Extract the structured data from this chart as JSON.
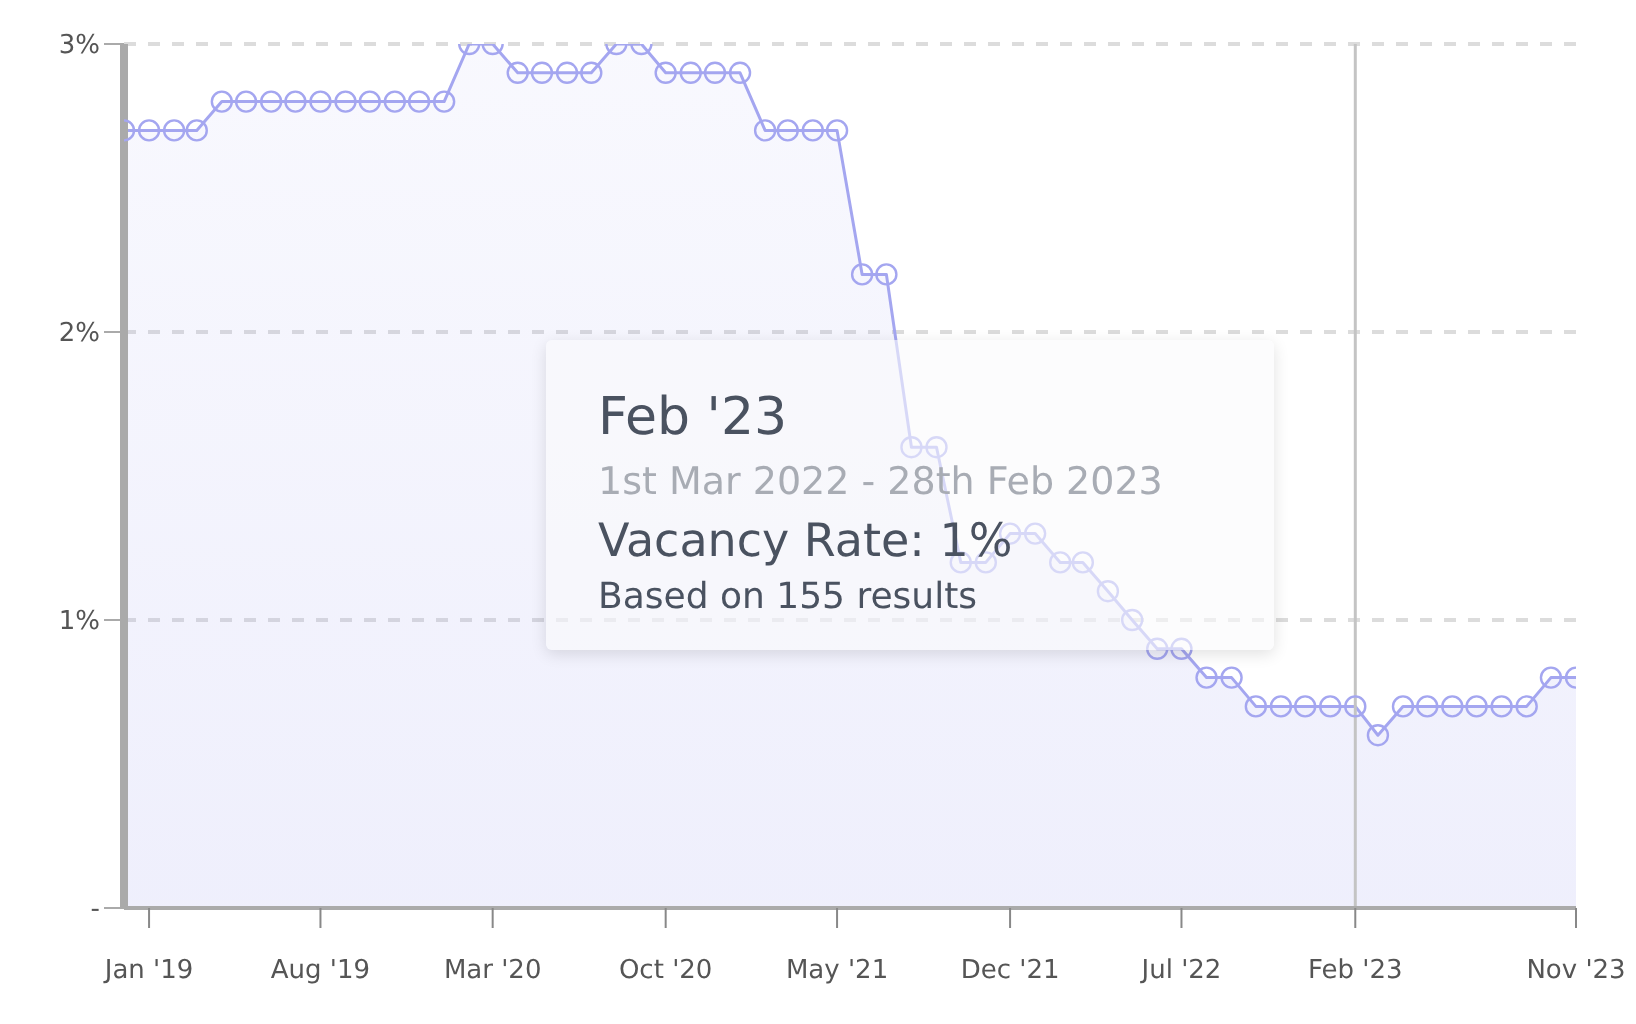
{
  "chart_data": {
    "type": "area",
    "x": [
      "2018-12",
      "2019-01",
      "2019-02",
      "2019-03",
      "2019-04",
      "2019-05",
      "2019-06",
      "2019-07",
      "2019-08",
      "2019-09",
      "2019-10",
      "2019-11",
      "2019-12",
      "2020-01",
      "2020-02",
      "2020-03",
      "2020-04",
      "2020-05",
      "2020-06",
      "2020-07",
      "2020-08",
      "2020-09",
      "2020-10",
      "2020-11",
      "2020-12",
      "2021-01",
      "2021-02",
      "2021-03",
      "2021-04",
      "2021-05",
      "2021-06",
      "2021-07",
      "2021-08",
      "2021-09",
      "2021-10",
      "2021-11",
      "2021-12",
      "2022-01",
      "2022-02",
      "2022-03",
      "2022-04",
      "2022-05",
      "2022-06",
      "2022-07",
      "2022-08",
      "2022-09",
      "2022-10",
      "2022-11",
      "2022-12",
      "2023-01",
      "2023-02",
      "2023-03",
      "2023-04",
      "2023-05",
      "2023-06",
      "2023-07",
      "2023-08",
      "2023-09",
      "2023-10",
      "2023-11"
    ],
    "series": [
      {
        "color": "#a4a6f0",
        "values": [
          2.7,
          2.7,
          2.7,
          2.7,
          2.8,
          2.8,
          2.8,
          2.8,
          2.8,
          2.8,
          2.8,
          2.8,
          2.8,
          2.8,
          3.0,
          3.0,
          2.9,
          2.9,
          2.9,
          2.9,
          3.0,
          3.0,
          2.9,
          2.9,
          2.9,
          2.9,
          2.7,
          2.7,
          2.7,
          2.7,
          2.2,
          2.2,
          1.6,
          1.6,
          1.2,
          1.2,
          1.3,
          1.3,
          1.2,
          1.2,
          1.1,
          1.0,
          0.9,
          0.9,
          0.8,
          0.8,
          0.7,
          0.7,
          0.7,
          0.7,
          0.7,
          0.6,
          0.7,
          0.7,
          0.7,
          0.7,
          0.7,
          0.7,
          0.8,
          0.8
        ]
      }
    ],
    "xlim": [
      "2018-12",
      "2023-11"
    ],
    "xticks": [
      {
        "value": "2019-01",
        "label": "Jan '19"
      },
      {
        "value": "2019-08",
        "label": "Aug '19"
      },
      {
        "value": "2020-03",
        "label": "Mar '20"
      },
      {
        "value": "2020-10",
        "label": "Oct '20"
      },
      {
        "value": "2021-05",
        "label": "May '21"
      },
      {
        "value": "2021-12",
        "label": "Dec '21"
      },
      {
        "value": "2022-07",
        "label": "Jul '22"
      },
      {
        "value": "2023-02",
        "label": "Feb '23"
      },
      {
        "value": "2023-11",
        "label": "Nov '23"
      }
    ],
    "ylim": [
      0,
      3
    ],
    "yticks": [
      {
        "value": 0,
        "label": "-"
      },
      {
        "value": 1,
        "label": "1%"
      },
      {
        "value": 2,
        "label": "2%"
      },
      {
        "value": 3,
        "label": "3%"
      }
    ],
    "grid": "y",
    "marker": "circle",
    "ref_lines": [
      {
        "axis": "x",
        "value": "2023-02",
        "color": "#c4c4c4"
      }
    ],
    "annotations": [
      "Feb '23",
      "1st Mar 2022 - 28th Feb 2023",
      "Vacancy Rate: 1%",
      "Based on 155 results"
    ]
  }
}
